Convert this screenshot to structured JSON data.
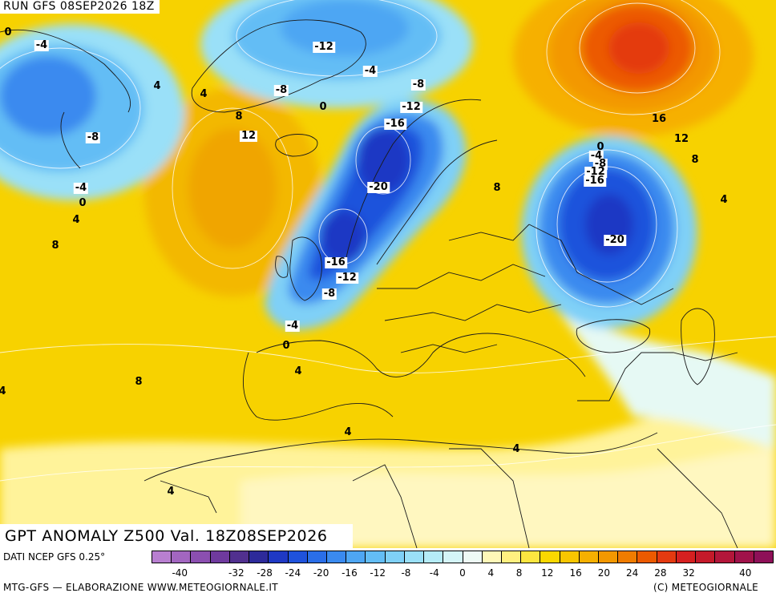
{
  "header": {
    "run_title": "RUN GFS 08SEP2026 18Z",
    "map_title": "GPT ANOMALY Z500 Val. 18Z08SEP2026"
  },
  "contour_labels": [
    {
      "text": "0",
      "plain": true
    },
    {
      "text": "-4",
      "plain": false
    },
    {
      "text": "4",
      "plain": true
    },
    {
      "text": "4",
      "plain": true
    },
    {
      "text": "-8",
      "plain": false
    },
    {
      "text": "8",
      "plain": true
    },
    {
      "text": "12",
      "plain": false
    },
    {
      "text": "-4",
      "plain": false
    },
    {
      "text": "0",
      "plain": true
    },
    {
      "text": "4",
      "plain": true
    },
    {
      "text": "8",
      "plain": true
    },
    {
      "text": "-12",
      "plain": false
    },
    {
      "text": "-8",
      "plain": false
    },
    {
      "text": "0",
      "plain": true
    },
    {
      "text": "-4",
      "plain": false
    },
    {
      "text": "-8",
      "plain": false
    },
    {
      "text": "-12",
      "plain": false
    },
    {
      "text": "-16",
      "plain": false
    },
    {
      "text": "-20",
      "plain": false
    },
    {
      "text": "-16",
      "plain": false
    },
    {
      "text": "-12",
      "plain": false
    },
    {
      "text": "-8",
      "plain": false
    },
    {
      "text": "-4",
      "plain": false
    },
    {
      "text": "0",
      "plain": true
    },
    {
      "text": "4",
      "plain": true
    },
    {
      "text": "8",
      "plain": true
    },
    {
      "text": "8",
      "plain": true
    },
    {
      "text": "16",
      "plain": true
    },
    {
      "text": "12",
      "plain": true
    },
    {
      "text": "8",
      "plain": true
    },
    {
      "text": "0",
      "plain": true
    },
    {
      "text": "-4",
      "plain": false
    },
    {
      "text": "-8",
      "plain": false
    },
    {
      "text": "-12",
      "plain": false
    },
    {
      "text": "-16",
      "plain": false
    },
    {
      "text": "-20",
      "plain": false
    },
    {
      "text": "4",
      "plain": true
    },
    {
      "text": "4",
      "plain": true
    },
    {
      "text": "4",
      "plain": true
    },
    {
      "text": "4",
      "plain": true
    },
    {
      "text": "4",
      "plain": true
    }
  ],
  "legend": {
    "source": "DATI NCEP GFS 0.25°",
    "colors": [
      "#b87fd0",
      "#a266c0",
      "#8b4fb0",
      "#6f3a9e",
      "#51308f",
      "#2d2a9a",
      "#1f39c4",
      "#1f52dc",
      "#2a6ee8",
      "#3a8aef",
      "#4ea6f3",
      "#63bdf5",
      "#7fd0f7",
      "#9ae0f8",
      "#b5ecf8",
      "#d4f5f8",
      "#eefaf5",
      "#fff8b8",
      "#fff080",
      "#fde640",
      "#fbd800",
      "#f8c600",
      "#f6b000",
      "#f39800",
      "#f07c00",
      "#ec5a00",
      "#e43a10",
      "#d62020",
      "#c51a2a",
      "#b3163a",
      "#a0124a",
      "#8e1058"
    ],
    "tick_labels": [
      "-40",
      "-32",
      "-28",
      "-24",
      "-20",
      "-16",
      "-12",
      "-8",
      "-4",
      "0",
      "4",
      "8",
      "12",
      "16",
      "20",
      "24",
      "28",
      "32",
      "40"
    ],
    "tick_values": [
      -40,
      -32,
      -28,
      -24,
      -20,
      -16,
      -12,
      -8,
      -4,
      0,
      4,
      8,
      12,
      16,
      20,
      24,
      28,
      32,
      40
    ],
    "scale_min": -44,
    "scale_max": 44,
    "credit_left": "MTG-GFS — ELABORAZIONE WWW.METEOGIORNALE.IT",
    "credit_right": "(C) METEOGIORNALE"
  }
}
